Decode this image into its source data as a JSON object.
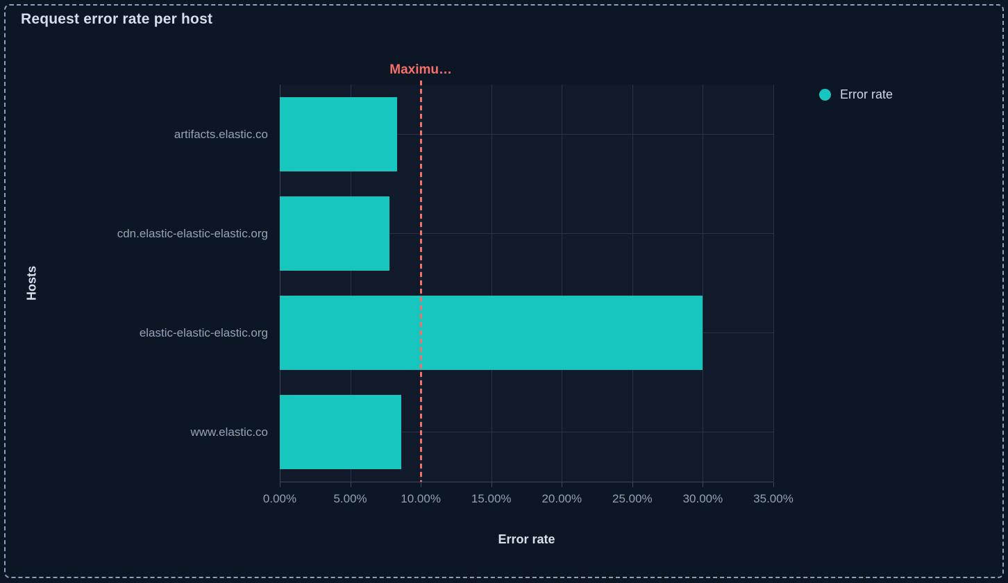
{
  "panel": {
    "title": "Request error rate per host"
  },
  "colors": {
    "background": "#0D1625",
    "plot_background": "#101A2B",
    "bar": "#17C6BF",
    "threshold": "#F6706A",
    "gridline": "#29334A",
    "axis_line": "#3D4763",
    "panel_border": "#8DA0BF",
    "title_text": "#D6DEEB",
    "tick_text": "#93A0B6",
    "legend_text": "#D0D8E5"
  },
  "legend": {
    "position": "right-top"
  },
  "chart_data": {
    "type": "bar",
    "orientation": "horizontal",
    "title": "Request error rate per host",
    "xlabel": "Error rate",
    "ylabel": "Hosts",
    "categories": [
      "artifacts.elastic.co",
      "cdn.elastic-elastic-elastic.org",
      "elastic-elastic-elastic.org",
      "www.elastic.co"
    ],
    "series": [
      {
        "name": "Error rate",
        "color": "#17C6BF",
        "values": [
          8.3,
          7.8,
          30.0,
          8.6
        ]
      }
    ],
    "value_unit": "%",
    "xlim": [
      0,
      35
    ],
    "xticks": [
      0,
      5,
      10,
      15,
      20,
      25,
      30,
      35
    ],
    "xtick_labels": [
      "0.00%",
      "5.00%",
      "10.00%",
      "15.00%",
      "20.00%",
      "25.00%",
      "30.00%",
      "35.00%"
    ],
    "threshold": {
      "label": "Maximu…",
      "value": 10,
      "color": "#F6706A",
      "style": "dashed"
    },
    "grid": true,
    "legend_position": "right-top"
  }
}
